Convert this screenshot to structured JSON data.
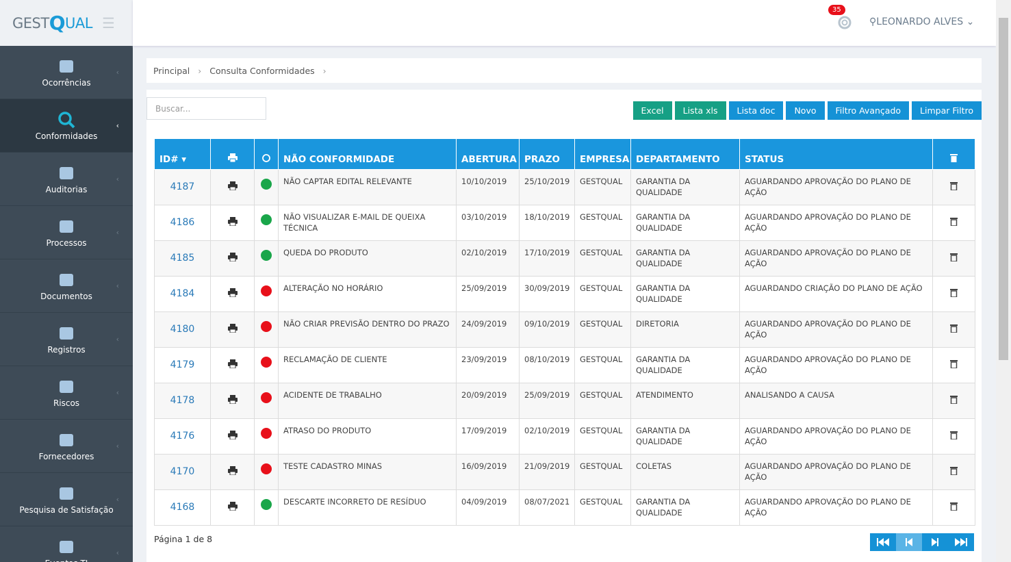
{
  "logo": {
    "left": "GEST",
    "q": "Q",
    "right": "UAL"
  },
  "header": {
    "notifications": "35",
    "user": "LEONARDO ALVES"
  },
  "sidebar": {
    "active": 1,
    "items": [
      "Ocorrências",
      "Conformidades",
      "Auditorias",
      "Processos",
      "Documentos",
      "Registros",
      "Riscos",
      "Fornecedores",
      "Pesquisa de Satisfação",
      "Eventos TI"
    ]
  },
  "breadcrumb": [
    "Principal",
    "Consulta Conformidades"
  ],
  "search": {
    "placeholder": "Buscar..."
  },
  "toolbar": [
    {
      "label": "Excel",
      "color": "#16a085"
    },
    {
      "label": "Lista xls",
      "color": "#16a085"
    },
    {
      "label": "Lista doc",
      "color": "#1592d6"
    },
    {
      "label": "Novo",
      "color": "#1592d6"
    },
    {
      "label": "Filtro Avançado",
      "color": "#1592d6"
    },
    {
      "label": "Limpar Filtro",
      "color": "#1592d6"
    }
  ],
  "table": {
    "headers": {
      "id": "ID#",
      "nc": "NÃO CONFORMIDADE",
      "abertura": "ABERTURA",
      "prazo": "PRAZO",
      "empresa": "EMPRESA",
      "departamento": "DEPARTAMENTO",
      "status": "STATUS"
    },
    "rows": [
      {
        "id": "4187",
        "dot": "#1aa64a",
        "nc": "NÃO CAPTAR EDITAL RELEVANTE",
        "abertura": "10/10/2019",
        "prazo": "25/10/2019",
        "empresa": "GESTQUAL",
        "departamento": "GARANTIA DA QUALIDADE",
        "status": "AGUARDANDO APROVAÇÃO DO PLANO DE AÇÃO"
      },
      {
        "id": "4186",
        "dot": "#1aa64a",
        "nc": "NÃO VISUALIZAR E-MAIL DE QUEIXA TÉCNICA",
        "abertura": "03/10/2019",
        "prazo": "18/10/2019",
        "empresa": "GESTQUAL",
        "departamento": "GARANTIA DA QUALIDADE",
        "status": "AGUARDANDO APROVAÇÃO DO PLANO DE AÇÃO"
      },
      {
        "id": "4185",
        "dot": "#1aa64a",
        "nc": "QUEDA DO PRODUTO",
        "abertura": "02/10/2019",
        "prazo": "17/10/2019",
        "empresa": "GESTQUAL",
        "departamento": "GARANTIA DA QUALIDADE",
        "status": "AGUARDANDO APROVAÇÃO DO PLANO DE AÇÃO"
      },
      {
        "id": "4184",
        "dot": "#e8101a",
        "nc": "ALTERAÇÃO NO HORÁRIO",
        "abertura": "25/09/2019",
        "prazo": "30/09/2019",
        "empresa": "GESTQUAL",
        "departamento": "GARANTIA DA QUALIDADE",
        "status": "AGUARDANDO CRIAÇÃO DO PLANO DE AÇÃO"
      },
      {
        "id": "4180",
        "dot": "#e8101a",
        "nc": "NÃO CRIAR PREVISÃO DENTRO DO PRAZO",
        "abertura": "24/09/2019",
        "prazo": "09/10/2019",
        "empresa": "GESTQUAL",
        "departamento": "DIRETORIA",
        "status": "AGUARDANDO APROVAÇÃO DO PLANO DE AÇÃO"
      },
      {
        "id": "4179",
        "dot": "#e8101a",
        "nc": "RECLAMAÇÃO DE CLIENTE",
        "abertura": "23/09/2019",
        "prazo": "08/10/2019",
        "empresa": "GESTQUAL",
        "departamento": "GARANTIA DA QUALIDADE",
        "status": "AGUARDANDO APROVAÇÃO DO PLANO DE AÇÃO"
      },
      {
        "id": "4178",
        "dot": "#e8101a",
        "nc": "ACIDENTE DE TRABALHO",
        "abertura": "20/09/2019",
        "prazo": "25/09/2019",
        "empresa": "GESTQUAL",
        "departamento": "ATENDIMENTO",
        "status": "ANALISANDO A CAUSA"
      },
      {
        "id": "4176",
        "dot": "#e8101a",
        "nc": "ATRASO DO PRODUTO",
        "abertura": "17/09/2019",
        "prazo": "02/10/2019",
        "empresa": "GESTQUAL",
        "departamento": "GARANTIA DA QUALIDADE",
        "status": "AGUARDANDO APROVAÇÃO DO PLANO DE AÇÃO"
      },
      {
        "id": "4170",
        "dot": "#e8101a",
        "nc": "TESTE CADASTRO MINAS",
        "abertura": "16/09/2019",
        "prazo": "21/09/2019",
        "empresa": "GESTQUAL",
        "departamento": "COLETAS",
        "status": "AGUARDANDO APROVAÇÃO DO PLANO DE AÇÃO"
      },
      {
        "id": "4168",
        "dot": "#1aa64a",
        "nc": "DESCARTE INCORRETO DE RESÍDUO",
        "abertura": "04/09/2019",
        "prazo": "08/07/2021",
        "empresa": "GESTQUAL",
        "departamento": "GARANTIA DA QUALIDADE",
        "status": "AGUARDANDO APROVAÇÃO DO PLANO DE AÇÃO"
      }
    ]
  },
  "pagination": {
    "info": "Página 1 de 8"
  }
}
